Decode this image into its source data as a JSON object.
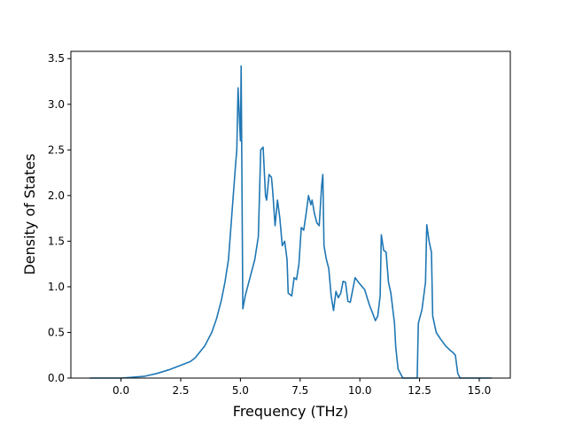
{
  "chart_data": {
    "type": "line",
    "title": "",
    "xlabel": "Frequency (THz)",
    "ylabel": "Density of States",
    "xlim": [
      -2.1,
      16.3
    ],
    "ylim": [
      0,
      3.58
    ],
    "grid": false,
    "legend": "none",
    "xticks": [
      0.0,
      2.5,
      5.0,
      7.5,
      10.0,
      12.5,
      15.0
    ],
    "xtick_labels": [
      "0.0",
      "2.5",
      "5.0",
      "7.5",
      "10.0",
      "12.5",
      "15.0"
    ],
    "yticks": [
      0.0,
      0.5,
      1.0,
      1.5,
      2.0,
      2.5,
      3.0,
      3.5
    ],
    "ytick_labels": [
      "0.0",
      "0.5",
      "1.0",
      "1.5",
      "2.0",
      "2.5",
      "3.0",
      "3.5"
    ],
    "series": [
      {
        "color": "#1f77b4",
        "x": [
          -1.3,
          -0.5,
          0.0,
          0.5,
          1.0,
          1.5,
          2.0,
          2.3,
          2.6,
          2.9,
          3.1,
          3.25,
          3.5,
          3.8,
          4.0,
          4.2,
          4.35,
          4.5,
          4.6,
          4.7,
          4.8,
          4.85,
          4.9,
          5.0,
          5.03,
          5.1,
          5.2,
          5.4,
          5.6,
          5.75,
          5.85,
          5.95,
          6.05,
          6.1,
          6.2,
          6.3,
          6.35,
          6.45,
          6.55,
          6.65,
          6.75,
          6.85,
          6.95,
          7.0,
          7.15,
          7.25,
          7.35,
          7.45,
          7.55,
          7.65,
          7.75,
          7.85,
          7.95,
          8.0,
          8.1,
          8.2,
          8.3,
          8.4,
          8.45,
          8.5,
          8.6,
          8.7,
          8.8,
          8.9,
          9.0,
          9.1,
          9.2,
          9.3,
          9.4,
          9.5,
          9.6,
          9.8,
          10.0,
          10.2,
          10.4,
          10.55,
          10.65,
          10.75,
          10.85,
          10.9,
          11.0,
          11.1,
          11.2,
          11.3,
          11.45,
          11.5,
          11.6,
          11.8,
          12.0,
          12.4,
          12.45,
          12.6,
          12.75,
          12.8,
          12.9,
          13.0,
          13.05,
          13.2,
          13.4,
          13.6,
          13.8,
          13.9,
          14.0,
          14.1,
          14.2,
          14.5,
          15.0,
          15.5
        ],
        "y": [
          0.0,
          0.0,
          0.0,
          0.01,
          0.02,
          0.05,
          0.09,
          0.12,
          0.15,
          0.18,
          0.22,
          0.27,
          0.35,
          0.5,
          0.65,
          0.85,
          1.05,
          1.3,
          1.65,
          2.0,
          2.35,
          2.5,
          3.18,
          2.6,
          3.42,
          0.76,
          0.9,
          1.1,
          1.3,
          1.55,
          2.5,
          2.53,
          2.0,
          1.95,
          2.23,
          2.2,
          2.05,
          1.67,
          1.95,
          1.75,
          1.45,
          1.5,
          1.3,
          0.93,
          0.9,
          1.1,
          1.08,
          1.25,
          1.65,
          1.62,
          1.8,
          2.0,
          1.9,
          1.95,
          1.8,
          1.7,
          1.67,
          2.1,
          2.23,
          1.45,
          1.3,
          1.2,
          0.9,
          0.74,
          0.95,
          0.88,
          0.93,
          1.06,
          1.05,
          0.84,
          0.83,
          1.1,
          1.03,
          0.97,
          0.8,
          0.7,
          0.63,
          0.68,
          0.9,
          1.57,
          1.4,
          1.38,
          1.05,
          0.93,
          0.6,
          0.35,
          0.1,
          0.0,
          0.0,
          0.0,
          0.6,
          0.75,
          1.05,
          1.68,
          1.5,
          1.38,
          0.68,
          0.5,
          0.42,
          0.35,
          0.3,
          0.28,
          0.25,
          0.05,
          0.0,
          0.0,
          0.0,
          0.0
        ]
      }
    ]
  }
}
